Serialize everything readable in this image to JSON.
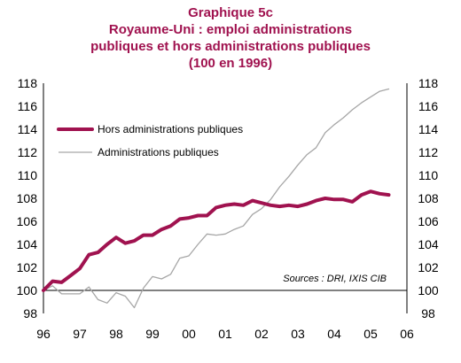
{
  "chart_data": {
    "type": "line",
    "title_lines": [
      "Graphique 5c",
      "Royaume-Uni : emploi administrations",
      "publiques et hors administrations publiques",
      "(100 en 1996)"
    ],
    "x_tick_labels": [
      "96",
      "97",
      "98",
      "99",
      "00",
      "01",
      "02",
      "03",
      "04",
      "05",
      "06"
    ],
    "y_tick_labels": [
      "98",
      "100",
      "102",
      "104",
      "106",
      "108",
      "110",
      "112",
      "114",
      "116",
      "118"
    ],
    "xlim": [
      1996,
      2006
    ],
    "ylim": [
      98,
      118
    ],
    "reference_line": 100,
    "source": "Sources : DRI, IXIS CIB",
    "legend_position": "upper-left",
    "series": [
      {
        "name": "Hors administrations publiques",
        "color": "#a0124f",
        "x": [
          1996.0,
          1996.25,
          1996.5,
          1996.75,
          1997.0,
          1997.25,
          1997.5,
          1997.75,
          1998.0,
          1998.25,
          1998.5,
          1998.75,
          1999.0,
          1999.25,
          1999.5,
          1999.75,
          2000.0,
          2000.25,
          2000.5,
          2000.75,
          2001.0,
          2001.25,
          2001.5,
          2001.75,
          2002.0,
          2002.25,
          2002.5,
          2002.75,
          2003.0,
          2003.25,
          2003.5,
          2003.75,
          2004.0,
          2004.25,
          2004.5,
          2004.75,
          2005.0,
          2005.25,
          2005.5
        ],
        "values": [
          100.0,
          100.8,
          100.7,
          101.3,
          101.9,
          103.1,
          103.3,
          104.0,
          104.6,
          104.1,
          104.3,
          104.8,
          104.8,
          105.3,
          105.6,
          106.2,
          106.3,
          106.5,
          106.5,
          107.2,
          107.4,
          107.5,
          107.4,
          107.8,
          107.6,
          107.4,
          107.3,
          107.4,
          107.3,
          107.5,
          107.8,
          108.0,
          107.9,
          107.9,
          107.7,
          108.3,
          108.6,
          108.4,
          108.3
        ]
      },
      {
        "name": "Administrations publiques",
        "color": "#a6a6a6",
        "x": [
          1996.0,
          1996.25,
          1996.5,
          1996.75,
          1997.0,
          1997.25,
          1997.5,
          1997.75,
          1998.0,
          1998.25,
          1998.5,
          1998.75,
          1999.0,
          1999.25,
          1999.5,
          1999.75,
          2000.0,
          2000.25,
          2000.5,
          2000.75,
          2001.0,
          2001.25,
          2001.5,
          2001.75,
          2002.0,
          2002.25,
          2002.5,
          2002.75,
          2003.0,
          2003.25,
          2003.5,
          2003.75,
          2004.0,
          2004.25,
          2004.5,
          2004.75,
          2005.0,
          2005.25,
          2005.5
        ],
        "values": [
          100.0,
          100.4,
          99.7,
          99.7,
          99.7,
          100.3,
          99.2,
          98.9,
          99.8,
          99.5,
          98.5,
          100.2,
          101.2,
          101.0,
          101.4,
          102.8,
          103.0,
          104.0,
          104.9,
          104.8,
          104.9,
          105.3,
          105.6,
          106.6,
          107.1,
          107.9,
          109.0,
          109.9,
          110.9,
          111.8,
          112.4,
          113.7,
          114.4,
          115.0,
          115.7,
          116.3,
          116.8,
          117.3,
          117.5
        ]
      }
    ]
  }
}
